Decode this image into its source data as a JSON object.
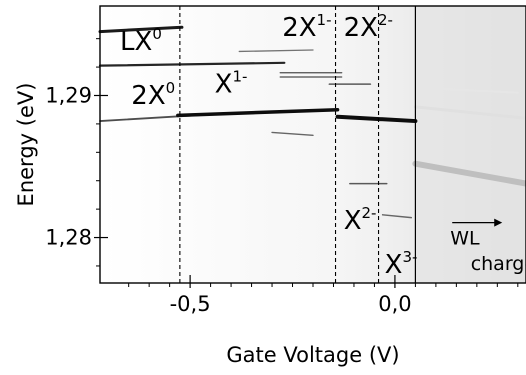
{
  "chart_data": {
    "type": "image",
    "xlabel": "Gate Voltage (V)",
    "ylabel": "Energy (eV)",
    "xlim": [
      -0.72,
      0.32
    ],
    "ylim": [
      1.2768,
      1.2963
    ],
    "x_ticks": [
      {
        "value": -0.5,
        "label": "-0,5"
      },
      {
        "value": 0.0,
        "label": "0,0"
      }
    ],
    "y_ticks": [
      {
        "value": 1.28,
        "label": "1,28"
      },
      {
        "value": 1.29,
        "label": "1,29"
      }
    ],
    "x_minor_ticks": [
      -0.65,
      -0.6,
      -0.55,
      -0.45,
      -0.4,
      -0.35,
      -0.3,
      -0.25,
      -0.2,
      -0.15,
      -0.1,
      -0.05,
      0.05,
      0.1,
      0.15,
      0.2,
      0.25,
      0.3
    ],
    "y_minor_ticks": [
      1.278,
      1.282,
      1.284,
      1.286,
      1.288,
      1.292,
      1.294
    ],
    "dashed_lines_x": [
      -0.525,
      -0.145,
      -0.04
    ],
    "solid_line_x": 0.05,
    "grayscale_background": true,
    "annotations": [
      {
        "base": "X",
        "sup": "0",
        "prefix": "L",
        "x": -0.62,
        "y": 1.2932
      },
      {
        "base": "2X",
        "sup": "0",
        "x": -0.59,
        "y": 1.2894
      },
      {
        "base": "X",
        "sup": "1-",
        "x": -0.4,
        "y": 1.2902
      },
      {
        "base": "2X",
        "sup": "1-",
        "x": -0.215,
        "y": 1.2942
      },
      {
        "base": "2X",
        "sup": "2-",
        "x": -0.065,
        "y": 1.2942
      },
      {
        "base": "X",
        "sup": "2-",
        "x": -0.085,
        "y": 1.2806
      },
      {
        "base": "X",
        "sup": "3-",
        "x": 0.015,
        "y": 1.2775
      },
      {
        "text": "WL",
        "x": 0.135,
        "y": 1.2795
      },
      {
        "text": "charged",
        "x": 0.185,
        "y": 1.2777
      }
    ],
    "lines": [
      {
        "x": [
          -0.72,
          -0.52
        ],
        "y": [
          1.2945,
          1.2948
        ],
        "weight": 3.0,
        "level": 0.1
      },
      {
        "x": [
          -0.72,
          -0.27
        ],
        "y": [
          1.2921,
          1.2923
        ],
        "weight": 2.2,
        "level": 0.15
      },
      {
        "x": [
          -0.38,
          -0.2
        ],
        "y": [
          1.2931,
          1.2932
        ],
        "weight": 1.3,
        "level": 0.45
      },
      {
        "x": [
          -0.72,
          -0.43
        ],
        "y": [
          1.2882,
          1.2887
        ],
        "weight": 1.8,
        "level": 0.3
      },
      {
        "x": [
          -0.53,
          -0.14
        ],
        "y": [
          1.2886,
          1.289
        ],
        "weight": 3.5,
        "level": 0.05
      },
      {
        "x": [
          -0.14,
          0.05
        ],
        "y": [
          1.2885,
          1.2882
        ],
        "weight": 4.0,
        "level": 0.05
      },
      {
        "x": [
          -0.28,
          -0.13
        ],
        "y": [
          1.2916,
          1.2916
        ],
        "weight": 1.3,
        "level": 0.3
      },
      {
        "x": [
          -0.28,
          -0.13
        ],
        "y": [
          1.2913,
          1.2913
        ],
        "weight": 1.3,
        "level": 0.3
      },
      {
        "x": [
          -0.16,
          -0.06
        ],
        "y": [
          1.2908,
          1.2908
        ],
        "weight": 1.6,
        "level": 0.35
      },
      {
        "x": [
          -0.3,
          -0.2
        ],
        "y": [
          1.2874,
          1.2872
        ],
        "weight": 1.4,
        "level": 0.4
      },
      {
        "x": [
          -0.11,
          -0.02
        ],
        "y": [
          1.2838,
          1.2838
        ],
        "weight": 1.5,
        "level": 0.35
      },
      {
        "x": [
          -0.03,
          0.04
        ],
        "y": [
          1.2816,
          1.2814
        ],
        "weight": 1.5,
        "level": 0.4
      },
      {
        "x": [
          0.05,
          0.32
        ],
        "y": [
          1.2852,
          1.2838
        ],
        "weight": 6.0,
        "level": 0.75
      },
      {
        "x": [
          0.05,
          0.32
        ],
        "y": [
          1.2892,
          1.2884
        ],
        "weight": 3.0,
        "level": 0.88
      },
      {
        "x": [
          0.08,
          0.3
        ],
        "y": [
          1.2905,
          1.2902
        ],
        "weight": 2.0,
        "level": 0.9
      }
    ]
  }
}
